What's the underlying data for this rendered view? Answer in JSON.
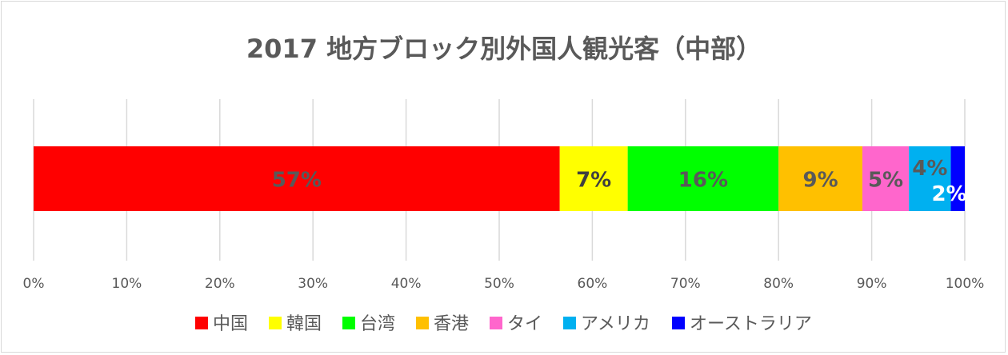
{
  "chart_data": {
    "type": "bar",
    "orientation": "horizontal",
    "stacked": "percent",
    "title": "2017 地方ブロック別外国人観光客（中部）",
    "categories": [
      "中部"
    ],
    "series": [
      {
        "name": "中国",
        "values": [
          56.5
        ],
        "label": "57%",
        "color": "#ff0000",
        "label_color": "#595959"
      },
      {
        "name": "韓国",
        "values": [
          7.3
        ],
        "label": "7%",
        "color": "#ffff00",
        "label_color": "#404040"
      },
      {
        "name": "台湾",
        "values": [
          16.2
        ],
        "label": "16%",
        "color": "#00ff00",
        "label_color": "#595959"
      },
      {
        "name": "香港",
        "values": [
          9.0
        ],
        "label": "9%",
        "color": "#ffc000",
        "label_color": "#595959"
      },
      {
        "name": "タイ",
        "values": [
          5.0
        ],
        "label": "5%",
        "color": "#ff66cc",
        "label_color": "#595959"
      },
      {
        "name": "アメリカ",
        "values": [
          4.5
        ],
        "label": "4%",
        "color": "#00b0f0",
        "label_color": "#595959"
      },
      {
        "name": "オーストラリア",
        "values": [
          1.5
        ],
        "label": "2%",
        "color": "#0000ff",
        "label_color": "#ffffff"
      }
    ],
    "xlim": [
      0,
      100
    ],
    "x_ticks": [
      "0%",
      "10%",
      "20%",
      "30%",
      "40%",
      "50%",
      "60%",
      "70%",
      "80%",
      "90%",
      "100%"
    ],
    "grid": true,
    "legend": "bottom"
  }
}
